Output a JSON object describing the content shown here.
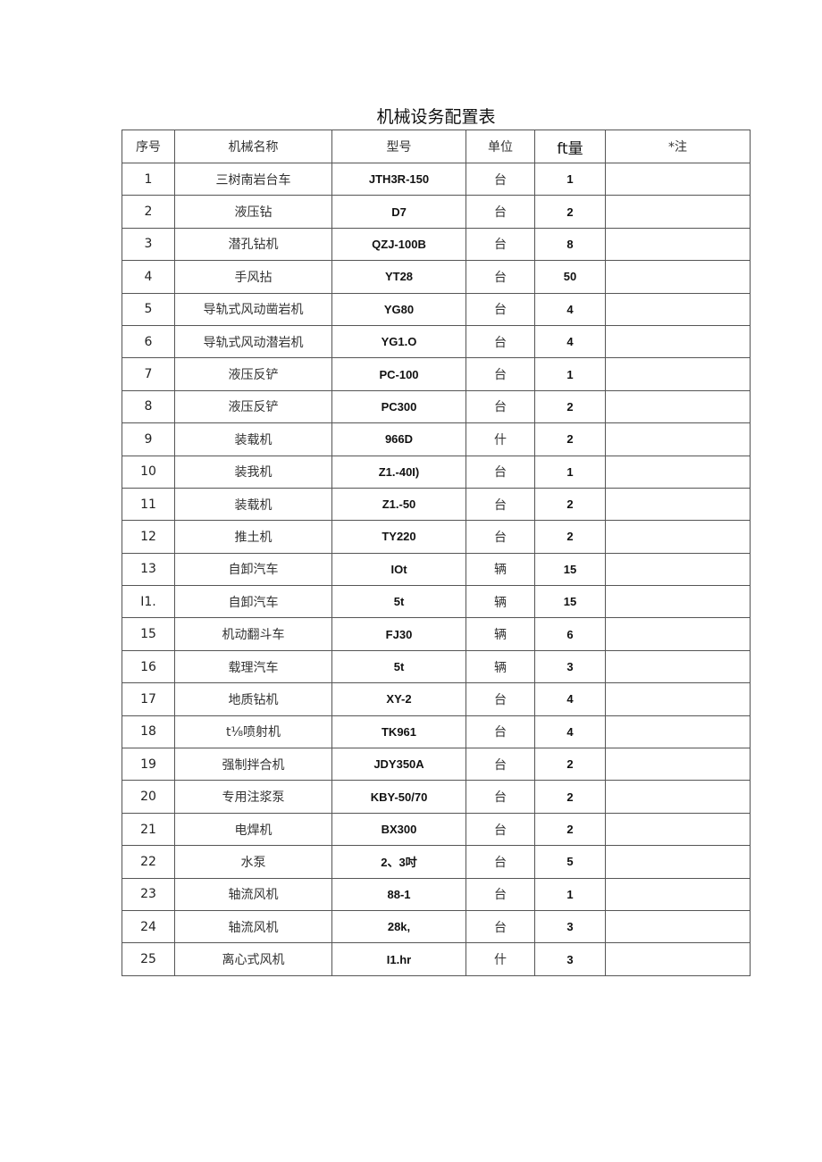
{
  "title": "机械设务配置表",
  "headers": {
    "no": "序号",
    "name": "机械名称",
    "model": "型号",
    "unit": "单位",
    "qty": "ft量",
    "note": "*注"
  },
  "rows": [
    {
      "no": "1",
      "name": "三树南岩台车",
      "model": "JTH3R-150",
      "unit": "台",
      "qty": "1",
      "note": ""
    },
    {
      "no": "2",
      "name": "液压钻",
      "model": "D7",
      "unit": "台",
      "qty": "2",
      "note": ""
    },
    {
      "no": "3",
      "name": "潜孔钻机",
      "model": "QZJ-100B",
      "unit": "台",
      "qty": "8",
      "note": ""
    },
    {
      "no": "4",
      "name": "手风拈",
      "model": "YT28",
      "unit": "台",
      "qty": "50",
      "note": ""
    },
    {
      "no": "5",
      "name": "导轨式风动凿岩机",
      "model": "YG80",
      "unit": "台",
      "qty": "4",
      "note": ""
    },
    {
      "no": "6",
      "name": "导轨式风动潜岩机",
      "model": "YG1.O",
      "unit": "台",
      "qty": "4",
      "note": ""
    },
    {
      "no": "7",
      "name": "液压反铲",
      "model": "PC-100",
      "unit": "台",
      "qty": "1",
      "note": ""
    },
    {
      "no": "8",
      "name": "液压反铲",
      "model": "PC300",
      "unit": "台",
      "qty": "2",
      "note": ""
    },
    {
      "no": "9",
      "name": "装载机",
      "model": "966D",
      "unit": "什",
      "qty": "2",
      "note": ""
    },
    {
      "no": "10",
      "name": "装我机",
      "model": "Z1.-40I)",
      "unit": "台",
      "qty": "1",
      "note": ""
    },
    {
      "no": "11",
      "name": "装载机",
      "model": "Z1.-50",
      "unit": "台",
      "qty": "2",
      "note": ""
    },
    {
      "no": "12",
      "name": "推土机",
      "model": "TY220",
      "unit": "台",
      "qty": "2",
      "note": ""
    },
    {
      "no": "13",
      "name": "自卸汽车",
      "model": "IOt",
      "unit": "辆",
      "qty": "15",
      "note": ""
    },
    {
      "no": "I1.",
      "name": "自卸汽车",
      "model": "5t",
      "unit": "辆",
      "qty": "15",
      "note": ""
    },
    {
      "no": "15",
      "name": "机动翻斗车",
      "model": "FJ30",
      "unit": "辆",
      "qty": "6",
      "note": ""
    },
    {
      "no": "16",
      "name": "载理汽车",
      "model": "5t",
      "unit": "辆",
      "qty": "3",
      "note": ""
    },
    {
      "no": "17",
      "name": "地质钻机",
      "model": "XY-2",
      "unit": "台",
      "qty": "4",
      "note": ""
    },
    {
      "no": "18",
      "name": "t⅛喷射机",
      "model": "TK961",
      "unit": "台",
      "qty": "4",
      "note": ""
    },
    {
      "no": "19",
      "name": "强制拌合机",
      "model": "JDY350A",
      "unit": "台",
      "qty": "2",
      "note": ""
    },
    {
      "no": "20",
      "name": "专用注浆泵",
      "model": "KBY-50/70",
      "unit": "台",
      "qty": "2",
      "note": ""
    },
    {
      "no": "21",
      "name": "电焊机",
      "model": "BX300",
      "unit": "台",
      "qty": "2",
      "note": ""
    },
    {
      "no": "22",
      "name": "水泵",
      "model": "2、3吋",
      "unit": "台",
      "qty": "5",
      "note": ""
    },
    {
      "no": "23",
      "name": "轴流风机",
      "model": "88-1",
      "unit": "台",
      "qty": "1",
      "note": ""
    },
    {
      "no": "24",
      "name": "轴流风机",
      "model": "28k,",
      "unit": "台",
      "qty": "3",
      "note": ""
    },
    {
      "no": "25",
      "name": "离心式风机",
      "model": "I1.hr",
      "unit": "什",
      "qty": "3",
      "note": ""
    }
  ]
}
